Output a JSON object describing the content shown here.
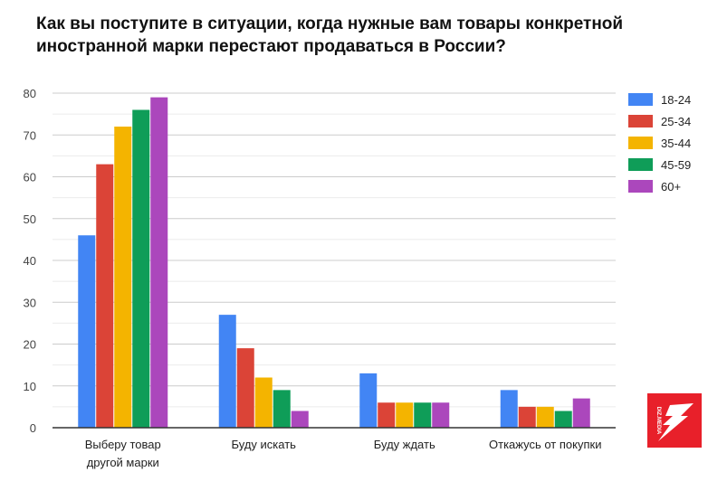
{
  "chart_data": {
    "type": "bar",
    "title": "Как вы поступите в ситуации, когда нужные вам товары конкретной иностранной марки перестают продаваться в России?",
    "categories": [
      [
        "Выберу товар",
        "другой марки"
      ],
      [
        "Буду искать"
      ],
      [
        "Буду ждать"
      ],
      [
        "Откажусь от покупки"
      ]
    ],
    "series": [
      {
        "name": "18-24",
        "color": "#4285f4",
        "values": [
          46,
          27,
          13,
          9
        ]
      },
      {
        "name": "25-34",
        "color": "#db4437",
        "values": [
          63,
          19,
          6,
          5
        ]
      },
      {
        "name": "35-44",
        "color": "#f4b400",
        "values": [
          72,
          12,
          6,
          5
        ]
      },
      {
        "name": "45-59",
        "color": "#0f9d58",
        "values": [
          76,
          9,
          6,
          4
        ]
      },
      {
        "name": "60+",
        "color": "#ab47bc",
        "values": [
          79,
          4,
          6,
          7
        ]
      }
    ],
    "ylim": [
      0,
      80
    ],
    "yticks": [
      0,
      10,
      20,
      30,
      40,
      50,
      60,
      70,
      80
    ],
    "grid": true,
    "legend": "right"
  },
  "logo": {
    "text": "DIZ.MEDIA",
    "color": "#e8202a"
  }
}
